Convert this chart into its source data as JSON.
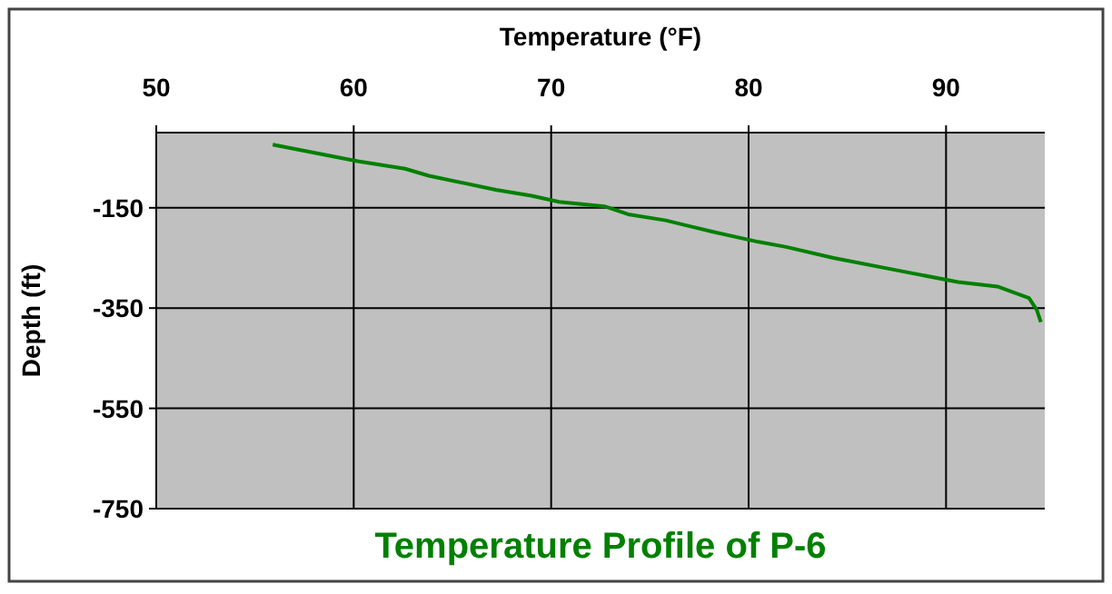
{
  "chart_data": {
    "type": "line",
    "title": "Temperature Profile of P-6",
    "xlabel": "Temperature (°F)",
    "ylabel": "Depth (ft)",
    "xlim": [
      50,
      95
    ],
    "xticks": [
      50,
      60,
      70,
      80,
      90
    ],
    "ylim": [
      -750,
      0
    ],
    "yticks": [
      -750,
      -550,
      -350,
      -150
    ],
    "grid": true,
    "marker": "none",
    "line_style": "solid",
    "series": [
      {
        "color": "#008000",
        "x": [
          55.9,
          60.2,
          62.6,
          63.8,
          67.2,
          69.0,
          70.4,
          72.7,
          73.9,
          75.8,
          78.2,
          80.5,
          81.9,
          84.3,
          87.7,
          90.6,
          92.6,
          94.2,
          94.6,
          94.8
        ],
        "values": [
          -24,
          -57,
          -72,
          -86,
          -114,
          -126,
          -138,
          -147,
          -163,
          -175,
          -198,
          -218,
          -228,
          -250,
          -276,
          -298,
          -307,
          -330,
          -354,
          -378
        ]
      }
    ]
  }
}
